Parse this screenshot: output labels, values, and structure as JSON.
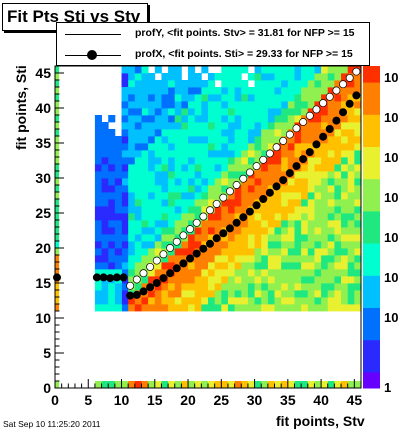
{
  "chart_data": {
    "type": "heatmap",
    "title": "Fit Pts Sti vs Stv",
    "xlabel": "fit points, Stv",
    "ylabel": "fit points, Sti",
    "xlim": [
      0,
      46
    ],
    "ylim": [
      0,
      46
    ],
    "x_ticks": [
      "0",
      "5",
      "10",
      "15",
      "20",
      "25",
      "30",
      "35",
      "40",
      "45"
    ],
    "y_ticks": [
      "0",
      "5",
      "10",
      "15",
      "20",
      "25",
      "30",
      "35",
      "40",
      "45"
    ],
    "z_scale": "log",
    "z_ticks": [
      "1",
      "10",
      "10",
      "10",
      "10",
      "10",
      "10",
      "10"
    ],
    "palette": [
      "#6600ff",
      "#2a2aff",
      "#0070ff",
      "#00c0ff",
      "#00ffd0",
      "#20e880",
      "#90f050",
      "#e8f030",
      "#ffc000",
      "#ff8000",
      "#ff3000"
    ],
    "legend": [
      {
        "text": "profY, <fit points. Stv> =   31.81 for NFP >= 15",
        "style": "line"
      },
      {
        "text": "profX, <fit points. Sti> =   29.33 for NFP >= 15",
        "style": "marker"
      }
    ],
    "series": [
      {
        "name": "profY",
        "marker": "open-circle",
        "x": [
          11,
          12,
          13,
          14,
          15,
          16,
          17,
          18,
          19,
          20,
          21,
          22,
          23,
          24,
          25,
          26,
          27,
          28,
          29,
          30,
          31,
          32,
          33,
          34,
          35,
          36,
          37,
          38,
          39,
          40,
          41,
          42,
          43,
          44,
          45
        ],
        "y": [
          14.6,
          15.5,
          16.4,
          17.3,
          18.2,
          19.1,
          20.0,
          20.9,
          21.8,
          22.7,
          23.6,
          24.5,
          25.4,
          26.3,
          27.2,
          28.1,
          29.0,
          29.9,
          30.8,
          31.7,
          32.6,
          33.5,
          34.4,
          35.3,
          36.2,
          37.1,
          38.0,
          38.9,
          39.8,
          40.7,
          41.6,
          42.5,
          43.4,
          44.3,
          45.2
        ]
      },
      {
        "name": "profX",
        "marker": "filled-circle",
        "x": [
          0,
          6,
          7,
          8,
          9,
          10,
          11,
          12,
          13,
          14,
          15,
          16,
          17,
          18,
          19,
          20,
          21,
          22,
          23,
          24,
          25,
          26,
          27,
          28,
          29,
          30,
          31,
          32,
          33,
          34,
          35,
          36,
          37,
          38,
          39,
          40,
          41,
          42,
          43,
          44,
          45
        ],
        "y": [
          15.8,
          15.8,
          15.8,
          15.7,
          15.8,
          15.8,
          13.2,
          13.3,
          13.8,
          14.4,
          15.0,
          15.7,
          16.4,
          17.1,
          17.8,
          18.5,
          19.2,
          19.9,
          20.6,
          21.4,
          22.1,
          22.8,
          23.6,
          24.4,
          25.2,
          26.1,
          27.0,
          27.9,
          28.8,
          29.7,
          30.7,
          31.7,
          32.7,
          33.7,
          34.8,
          35.9,
          37.0,
          38.2,
          39.4,
          40.6,
          41.8
        ]
      }
    ]
  },
  "footer": {
    "timestamp": "Sat Sep 10 11:25:20 2011"
  }
}
